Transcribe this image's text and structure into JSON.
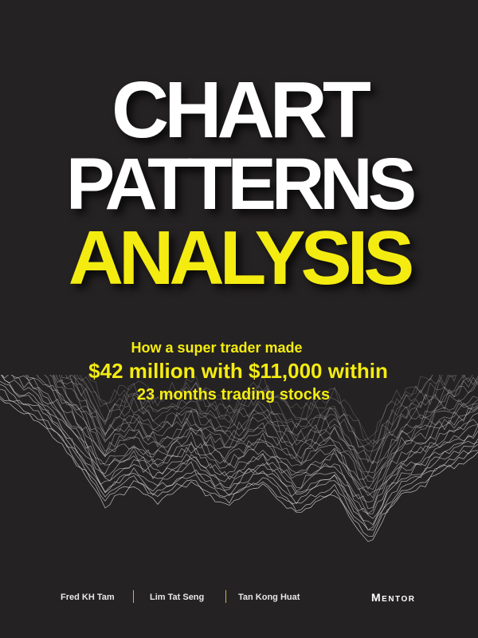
{
  "cover": {
    "title_line1": "CHART",
    "title_line2": "PATTERNS",
    "title_line3": "ANALYSIS",
    "subtitle_line1": "How a super trader made",
    "subtitle_line2": "$42 million with $11,000 within",
    "subtitle_line3": "23 months trading stocks",
    "authors": [
      "Fred KH Tam",
      "Lim Tat Seng",
      "Tan Kong Huat"
    ],
    "publisher": "Mentor"
  },
  "colors": {
    "background": "#252223",
    "title_white": "#ffffff",
    "title_yellow": "#f4ec11",
    "wave_lines": "#d8d8d8"
  }
}
